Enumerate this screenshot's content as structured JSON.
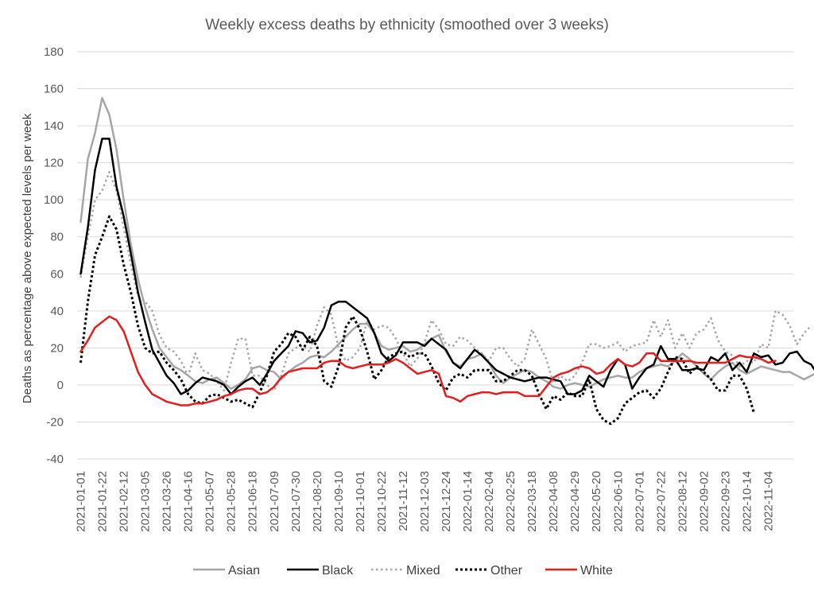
{
  "chart_data": {
    "type": "line",
    "title": "Weekly excess deaths by ethnicity (smoothed over 3 weeks)",
    "xlabel": "",
    "ylabel": "Deaths as percentage above expected levels per week",
    "ylim": [
      -40,
      180
    ],
    "yticks": [
      "180",
      "160",
      "140",
      "120",
      "100",
      "80",
      "60",
      "40",
      "20",
      "0",
      "-20",
      "-40"
    ],
    "x_tick_labels": [
      "2021-01-01",
      "2021-01-22",
      "2021-02-12",
      "2021-03-05",
      "2021-03-26",
      "2021-04-16",
      "2021-05-07",
      "2021-05-28",
      "2021-06-18",
      "2021-07-09",
      "2021-07-30",
      "2021-08-20",
      "2021-09-10",
      "2021-10-01",
      "2021-10-22",
      "2021-11-12",
      "2021-12-03",
      "2021-12-24",
      "2022-01-14",
      "2022-02-04",
      "2022-02-25",
      "2022-03-18",
      "2022-04-08",
      "2022-04-29",
      "2022-05-20",
      "2022-06-10",
      "2022-07-01",
      "2022-07-22",
      "2022-08-12",
      "2022-09-02",
      "2022-09-23",
      "2022-10-14",
      "2022-11-04"
    ],
    "x_start": "2021-01-01",
    "x_interval": "weekly",
    "grid": "horizontal",
    "legend_position": "bottom",
    "series": [
      {
        "name": "Asian",
        "color": "#a6a6a6",
        "dash": "solid",
        "values": [
          88,
          122,
          136,
          155,
          146,
          127,
          100,
          76,
          57,
          42,
          30,
          20,
          15,
          10,
          8,
          5,
          2,
          1,
          3,
          4,
          1,
          -2,
          0,
          3,
          9,
          10,
          8,
          7,
          3,
          7,
          10,
          12,
          15,
          16,
          15,
          18,
          22,
          26,
          30,
          33,
          33,
          28,
          21,
          19,
          20,
          21,
          18,
          19,
          22,
          25,
          27,
          18,
          12,
          10,
          14,
          15,
          17,
          12,
          5,
          1,
          4,
          6,
          8,
          7,
          4,
          2,
          -1,
          -2,
          0,
          1,
          0,
          -1,
          1,
          3,
          4,
          5,
          4,
          4,
          7,
          9,
          10,
          11,
          10,
          13,
          17,
          14,
          10,
          6,
          3,
          7,
          10,
          12,
          8,
          6,
          8,
          10,
          9,
          8,
          7,
          7,
          5,
          3,
          5,
          7,
          8,
          8,
          7,
          5,
          7,
          8
        ]
      },
      {
        "name": "Black",
        "color": "#000000",
        "dash": "solid",
        "values": [
          60,
          85,
          116,
          133,
          133,
          107,
          91,
          71,
          50,
          34,
          19,
          12,
          5,
          1,
          -5,
          -3,
          1,
          4,
          3,
          2,
          0,
          -5,
          -1,
          2,
          4,
          0,
          6,
          13,
          17,
          21,
          29,
          28,
          23,
          24,
          31,
          43,
          45,
          45,
          42,
          39,
          36,
          28,
          17,
          13,
          16,
          23,
          23,
          23,
          21,
          25,
          22,
          19,
          12,
          9,
          14,
          19,
          16,
          12,
          8,
          6,
          4,
          3,
          2,
          3,
          4,
          4,
          3,
          2,
          -5,
          -5,
          -3,
          5,
          2,
          -1,
          8,
          14,
          11,
          -2,
          4,
          9,
          11,
          21,
          14,
          14,
          8,
          8,
          9,
          8,
          15,
          13,
          17,
          8,
          12,
          7,
          17,
          15,
          16,
          11,
          12,
          17,
          18,
          13,
          11,
          5,
          8
        ]
      },
      {
        "name": "Mixed",
        "color": "#a6a6a6",
        "dash": "dot",
        "values": [
          58,
          80,
          100,
          105,
          115,
          105,
          85,
          65,
          48,
          45,
          40,
          27,
          20,
          18,
          13,
          5,
          17,
          8,
          6,
          2,
          -3,
          12,
          25,
          25,
          5,
          5,
          0,
          -3,
          5,
          17,
          20,
          21,
          18,
          32,
          42,
          38,
          20,
          13,
          15,
          20,
          35,
          30,
          32,
          31,
          25,
          17,
          10,
          14,
          23,
          35,
          30,
          22,
          21,
          26,
          24,
          20,
          17,
          13,
          20,
          20,
          14,
          10,
          14,
          30,
          22,
          14,
          1,
          5,
          2,
          5,
          12,
          22,
          22,
          20,
          21,
          23,
          18,
          21,
          22,
          23,
          35,
          26,
          35,
          20,
          28,
          20,
          28,
          30,
          36,
          24,
          18,
          16,
          10,
          13,
          12,
          22,
          20,
          40,
          38,
          32,
          22,
          28,
          32
        ]
      },
      {
        "name": "Other",
        "color": "#000000",
        "dash": "dotted-heavy",
        "values": [
          12,
          45,
          70,
          80,
          91,
          84,
          65,
          50,
          32,
          20,
          17,
          18,
          12,
          8,
          3,
          -5,
          -9,
          -10,
          -6,
          -5,
          -7,
          -9,
          -8,
          -10,
          -12,
          -4,
          5,
          18,
          22,
          28,
          26,
          19,
          26,
          21,
          2,
          -1,
          10,
          31,
          37,
          30,
          18,
          3,
          8,
          15,
          17,
          18,
          15,
          17,
          17,
          10,
          1,
          -3,
          4,
          6,
          4,
          8,
          8,
          8,
          2,
          2,
          5,
          8,
          8,
          5,
          -5,
          -13,
          -6,
          -8,
          -4,
          -6,
          -6,
          3,
          -13,
          -19,
          -21,
          -18,
          -10,
          -7,
          -4,
          -3,
          -7,
          -2,
          7,
          15,
          14,
          6,
          10,
          7,
          3,
          -3,
          -3,
          5,
          5,
          -2,
          -15
        ]
      },
      {
        "name": "White",
        "color": "#e81c1c",
        "dash": "solid",
        "values": [
          18,
          24,
          31,
          34,
          37,
          35,
          29,
          18,
          7,
          0,
          -5,
          -7,
          -9,
          -10,
          -11,
          -11,
          -10,
          -10,
          -9,
          -8,
          -6,
          -5,
          -3,
          -2,
          -2,
          -5,
          -4,
          -1,
          4,
          7,
          8,
          9,
          9,
          9,
          12,
          13,
          13,
          10,
          9,
          10,
          11,
          11,
          11,
          12,
          14,
          12,
          9,
          6,
          7,
          8,
          6,
          -6,
          -7,
          -9,
          -6,
          -5,
          -4,
          -4,
          -5,
          -4,
          -4,
          -4,
          -6,
          -6,
          -6,
          -1,
          4,
          6,
          7,
          9,
          10,
          9,
          6,
          7,
          11,
          14,
          11,
          10,
          12,
          17,
          17,
          13,
          13,
          13,
          13,
          13,
          12,
          12,
          12,
          12,
          12,
          14,
          16,
          15,
          15,
          14,
          12,
          13
        ]
      }
    ]
  }
}
